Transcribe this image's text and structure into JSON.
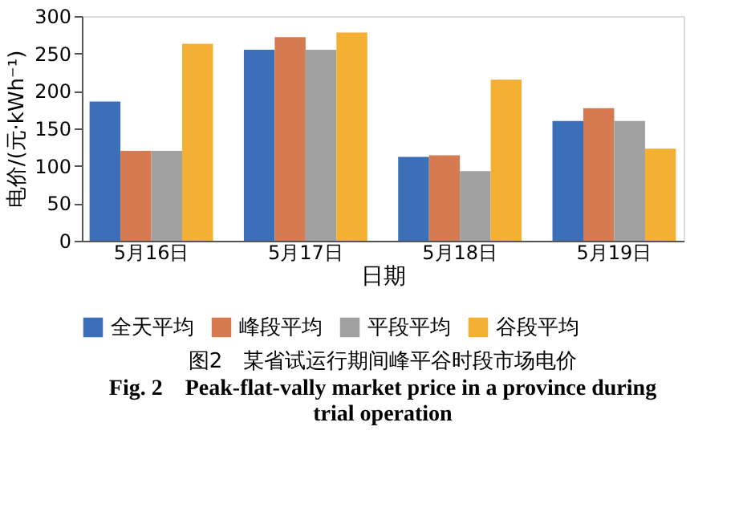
{
  "chart_data": {
    "type": "bar",
    "title": "图2　某省试运行期间峰平谷时段市场电价",
    "subtitle": "Fig. 2　Peak-flat-vally market price in a province during trial operation",
    "xlabel": "日期",
    "ylabel": "电价/(元·kWh⁻¹)",
    "categories": [
      "5月16日",
      "5月17日",
      "5月18日",
      "5月19日"
    ],
    "series": [
      {
        "name": "全天平均",
        "color": "#3b70b8",
        "values": [
          186,
          255,
          112,
          160
        ]
      },
      {
        "name": "峰段平均",
        "color": "#d67b51",
        "values": [
          120,
          272,
          114,
          177
        ]
      },
      {
        "name": "平段平均",
        "color": "#a0a0a0",
        "values": [
          120,
          255,
          93,
          160
        ]
      },
      {
        "name": "谷段平均",
        "color": "#f4b032",
        "values": [
          263,
          278,
          215,
          123
        ]
      }
    ],
    "ylim": [
      0,
      300
    ],
    "yticks": [
      0,
      50,
      100,
      150,
      200,
      250,
      300
    ],
    "grid": false,
    "legend": "bottom"
  }
}
